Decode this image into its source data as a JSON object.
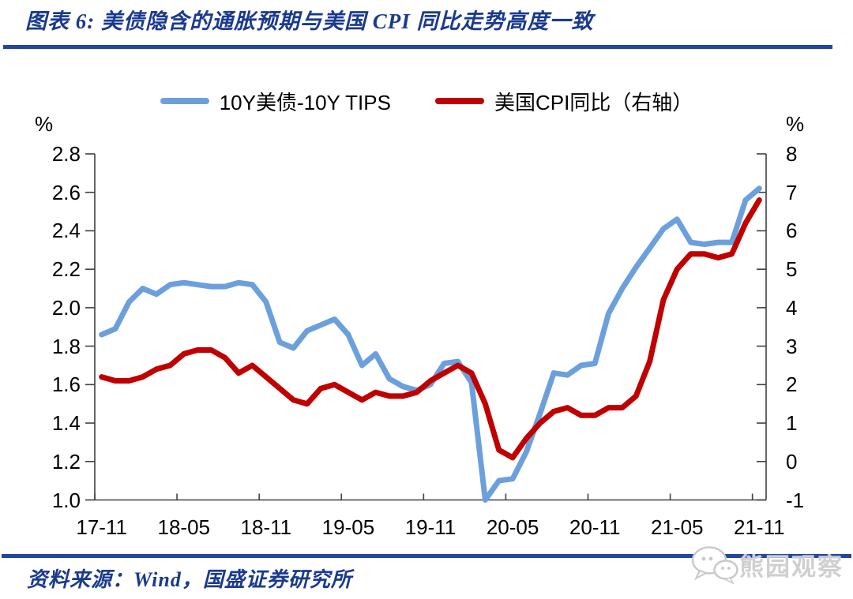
{
  "page": {
    "title": "图表 6:  美债隐含的通胀预期与美国 CPI 同比走势高度一致",
    "source": "资料来源：Wind，国盛证券研究所",
    "watermark": "熊园观察"
  },
  "colors": {
    "navy_rule": "#2346A0",
    "navy_text": "#1A3A8E",
    "line_blue": "#6CA0DC",
    "line_red": "#C00000",
    "axis": "#404040",
    "watermark_gray": "#CFCFCF"
  },
  "chart_data": {
    "type": "line",
    "title": "图表 6: 美债隐含的通胀预期与美国 CPI 同比走势高度一致",
    "grid": false,
    "legend_position": "top",
    "categories": [
      "17-11",
      "17-12",
      "18-01",
      "18-02",
      "18-03",
      "18-04",
      "18-05",
      "18-06",
      "18-07",
      "18-08",
      "18-09",
      "18-10",
      "18-11",
      "18-12",
      "19-01",
      "19-02",
      "19-03",
      "19-04",
      "19-05",
      "19-06",
      "19-07",
      "19-08",
      "19-09",
      "19-10",
      "19-11",
      "19-12",
      "20-01",
      "20-02",
      "20-03",
      "20-04",
      "20-05",
      "20-06",
      "20-07",
      "20-08",
      "20-09",
      "20-10",
      "20-11",
      "20-12",
      "21-01",
      "21-02",
      "21-03",
      "21-04",
      "21-05",
      "21-06",
      "21-07",
      "21-08",
      "21-09",
      "21-10",
      "21-11"
    ],
    "x_tick_labels": [
      "17-11",
      "18-05",
      "18-11",
      "19-05",
      "19-11",
      "20-05",
      "20-11",
      "21-05",
      "21-11"
    ],
    "series": [
      {
        "name": "10Y美债-10Y TIPS",
        "axis": "left",
        "color": "#6CA0DC",
        "values": [
          1.86,
          1.89,
          2.03,
          2.1,
          2.07,
          2.12,
          2.13,
          2.12,
          2.11,
          2.11,
          2.13,
          2.12,
          2.03,
          1.82,
          1.79,
          1.88,
          1.91,
          1.94,
          1.86,
          1.7,
          1.76,
          1.63,
          1.59,
          1.57,
          1.6,
          1.71,
          1.72,
          1.61,
          1.0,
          1.1,
          1.11,
          1.25,
          1.45,
          1.66,
          1.65,
          1.7,
          1.71,
          1.97,
          2.1,
          2.21,
          2.31,
          2.41,
          2.46,
          2.34,
          2.33,
          2.34,
          2.34,
          2.56,
          2.62
        ]
      },
      {
        "name": "美国CPI同比（右轴）",
        "axis": "right",
        "color": "#C00000",
        "values": [
          2.2,
          2.1,
          2.1,
          2.2,
          2.4,
          2.5,
          2.8,
          2.9,
          2.9,
          2.7,
          2.3,
          2.5,
          2.2,
          1.9,
          1.6,
          1.5,
          1.9,
          2.0,
          1.8,
          1.6,
          1.8,
          1.7,
          1.7,
          1.8,
          2.1,
          2.3,
          2.5,
          2.3,
          1.5,
          0.3,
          0.1,
          0.6,
          1.0,
          1.3,
          1.4,
          1.2,
          1.2,
          1.4,
          1.4,
          1.7,
          2.6,
          4.2,
          5.0,
          5.4,
          5.4,
          5.3,
          5.4,
          6.2,
          6.8
        ]
      }
    ],
    "left_axis": {
      "label": "%",
      "min": 1.0,
      "max": 2.8,
      "step": 0.2,
      "tick_labels": [
        "2.8",
        "2.6",
        "2.4",
        "2.2",
        "2.0",
        "1.8",
        "1.6",
        "1.4",
        "1.2",
        "1.0"
      ]
    },
    "right_axis": {
      "label": "%",
      "min": -1,
      "max": 8,
      "step": 1,
      "tick_labels": [
        "8",
        "7",
        "6",
        "5",
        "4",
        "3",
        "2",
        "1",
        "0",
        "-1"
      ]
    }
  }
}
